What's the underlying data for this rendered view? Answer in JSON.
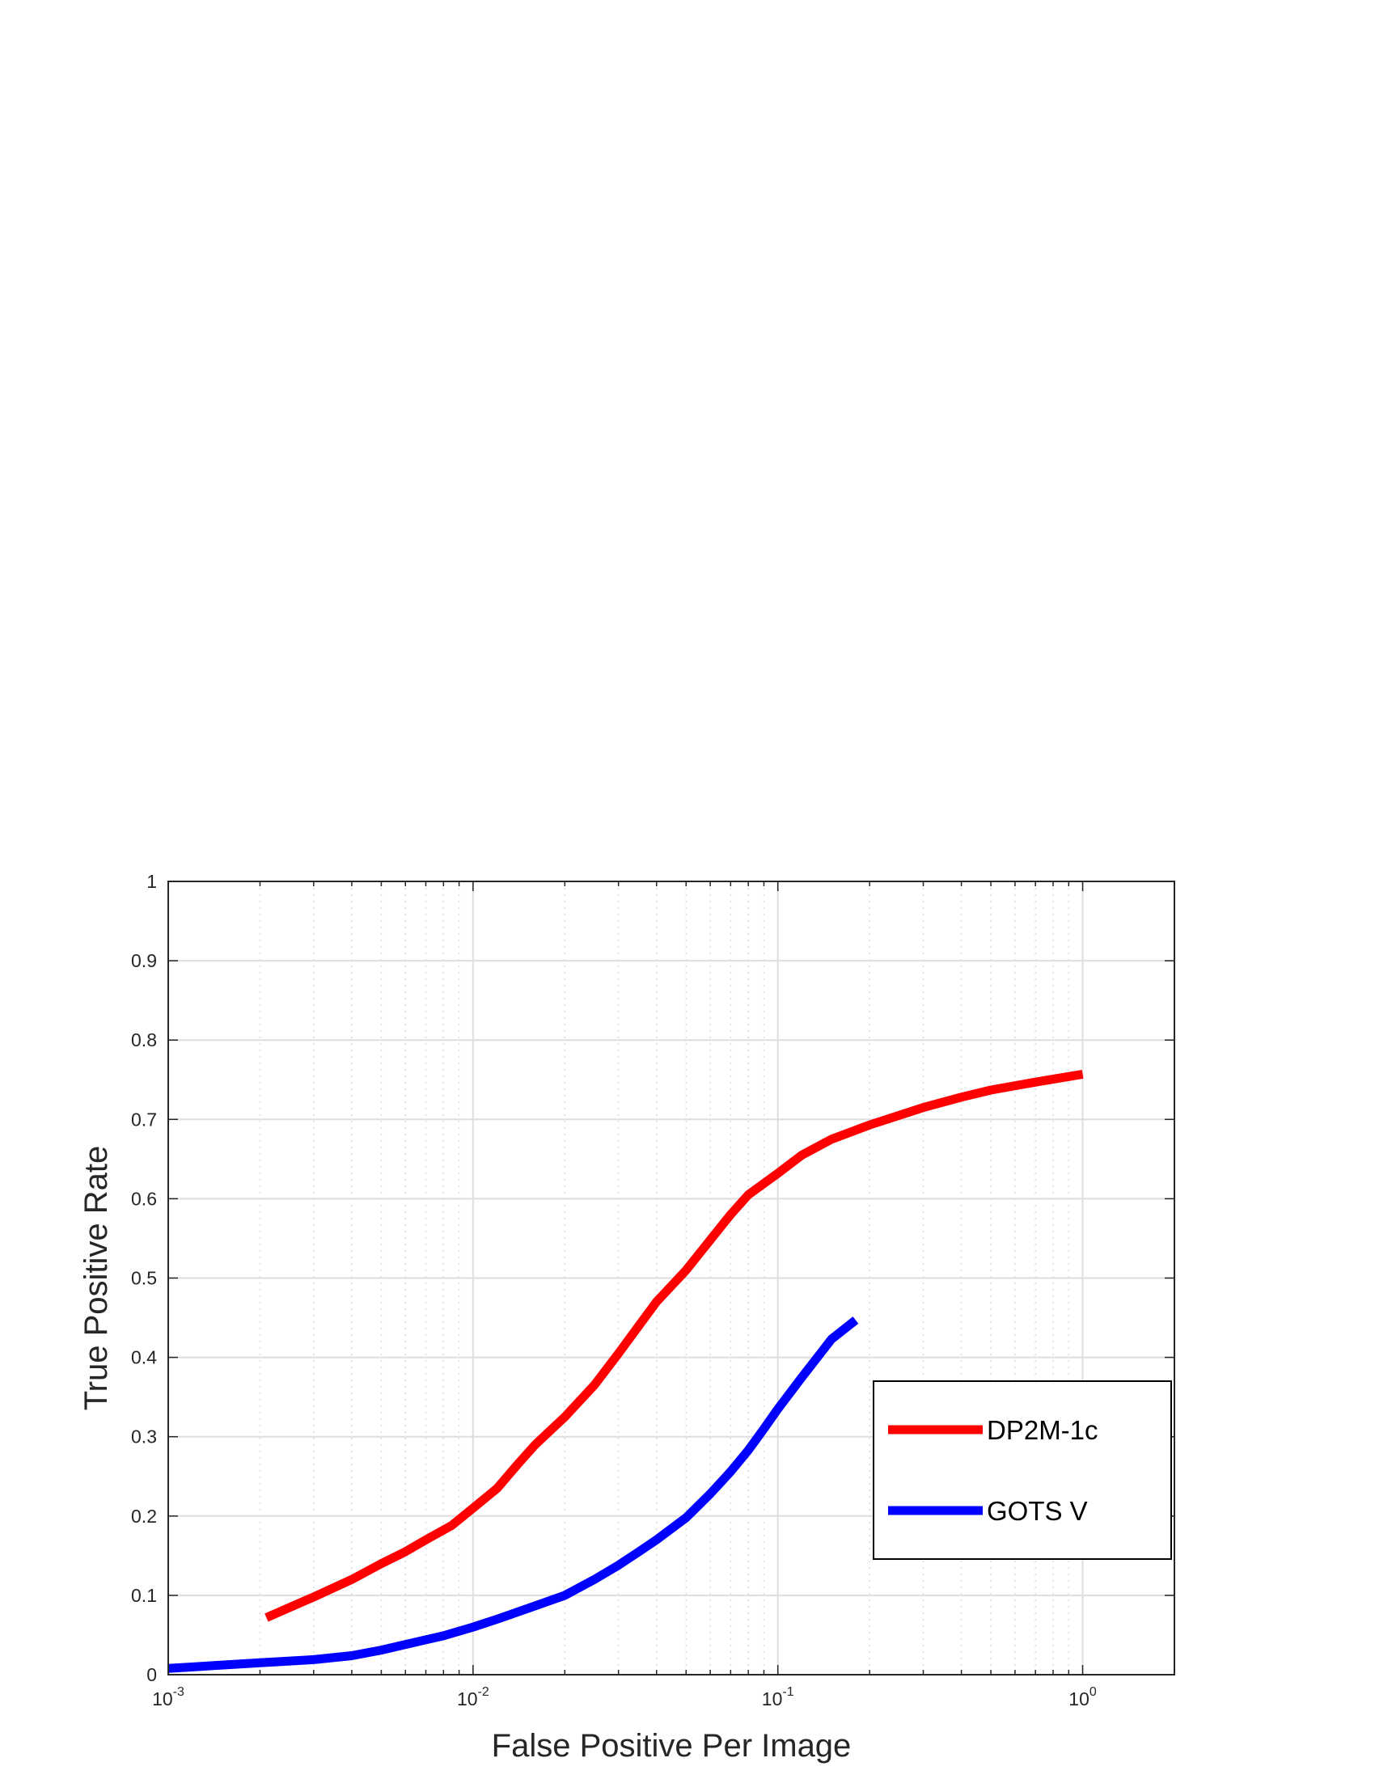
{
  "chart_data": {
    "type": "line",
    "xlabel": "False Positive Per Image",
    "ylabel": "True Positive Rate",
    "xscale": "log",
    "xlim": [
      0.001,
      2.0
    ],
    "ylim": [
      0,
      1
    ],
    "grid": true,
    "legend_position": "bottom-right",
    "xticks": [
      {
        "base": "10",
        "exp": "-3",
        "value": 0.001
      },
      {
        "base": "10",
        "exp": "-2",
        "value": 0.01
      },
      {
        "base": "10",
        "exp": "-1",
        "value": 0.1
      },
      {
        "base": "10",
        "exp": "0",
        "value": 1
      }
    ],
    "yticks": [
      "0",
      "0.1",
      "0.2",
      "0.3",
      "0.4",
      "0.5",
      "0.6",
      "0.7",
      "0.8",
      "0.9",
      "1"
    ],
    "series": [
      {
        "name": "DP2M-1c",
        "color": "#ff0000",
        "points": [
          [
            0.0021,
            0.072
          ],
          [
            0.003,
            0.098
          ],
          [
            0.004,
            0.12
          ],
          [
            0.005,
            0.14
          ],
          [
            0.006,
            0.155
          ],
          [
            0.007,
            0.17
          ],
          [
            0.0085,
            0.188
          ],
          [
            0.01,
            0.21
          ],
          [
            0.012,
            0.235
          ],
          [
            0.014,
            0.265
          ],
          [
            0.016,
            0.29
          ],
          [
            0.02,
            0.325
          ],
          [
            0.025,
            0.365
          ],
          [
            0.03,
            0.405
          ],
          [
            0.035,
            0.44
          ],
          [
            0.04,
            0.47
          ],
          [
            0.05,
            0.51
          ],
          [
            0.06,
            0.548
          ],
          [
            0.07,
            0.58
          ],
          [
            0.08,
            0.605
          ],
          [
            0.1,
            0.632
          ],
          [
            0.12,
            0.655
          ],
          [
            0.15,
            0.675
          ],
          [
            0.2,
            0.693
          ],
          [
            0.3,
            0.715
          ],
          [
            0.4,
            0.728
          ],
          [
            0.5,
            0.737
          ],
          [
            0.7,
            0.747
          ],
          [
            1.0,
            0.757
          ]
        ]
      },
      {
        "name": "GOTS V",
        "color": "#0000ff",
        "points": [
          [
            0.001,
            0.008
          ],
          [
            0.002,
            0.015
          ],
          [
            0.003,
            0.019
          ],
          [
            0.004,
            0.024
          ],
          [
            0.005,
            0.031
          ],
          [
            0.006,
            0.038
          ],
          [
            0.007,
            0.044
          ],
          [
            0.008,
            0.049
          ],
          [
            0.01,
            0.06
          ],
          [
            0.012,
            0.07
          ],
          [
            0.015,
            0.083
          ],
          [
            0.02,
            0.1
          ],
          [
            0.025,
            0.12
          ],
          [
            0.03,
            0.138
          ],
          [
            0.035,
            0.155
          ],
          [
            0.04,
            0.17
          ],
          [
            0.05,
            0.198
          ],
          [
            0.06,
            0.228
          ],
          [
            0.07,
            0.256
          ],
          [
            0.08,
            0.283
          ],
          [
            0.09,
            0.31
          ],
          [
            0.1,
            0.335
          ],
          [
            0.12,
            0.375
          ],
          [
            0.15,
            0.423
          ],
          [
            0.18,
            0.447
          ]
        ]
      }
    ]
  }
}
